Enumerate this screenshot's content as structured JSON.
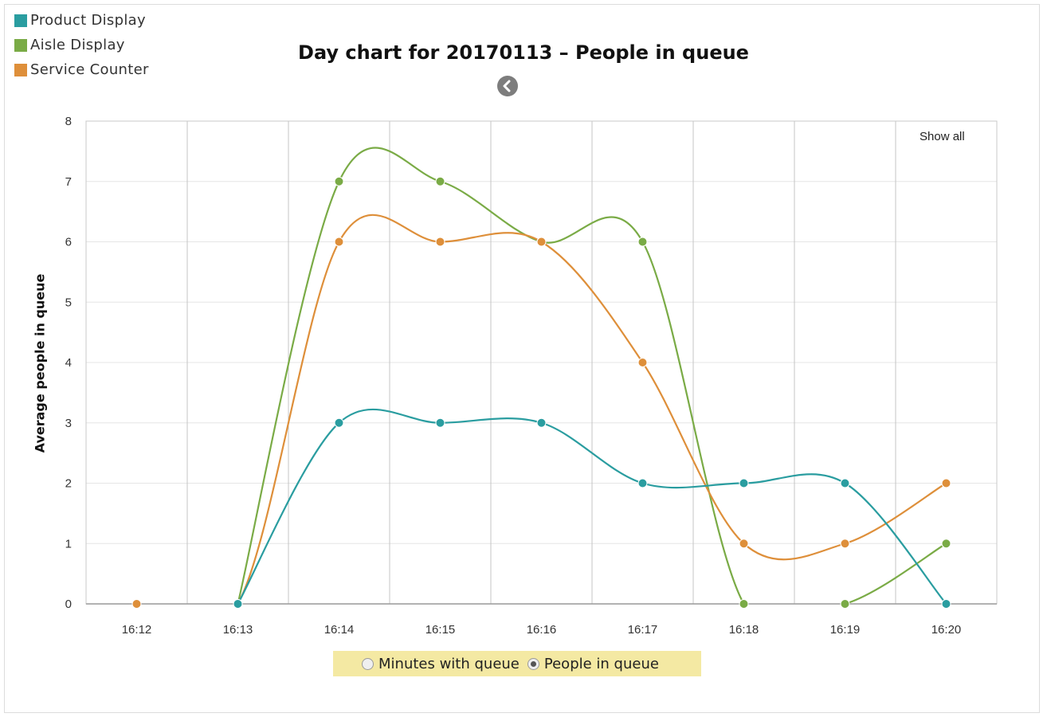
{
  "legend": {
    "items": [
      {
        "label": "Product Display",
        "color": "#2a9da0"
      },
      {
        "label": "Aisle Display",
        "color": "#7aab46"
      },
      {
        "label": "Service Counter",
        "color": "#de8f3a"
      }
    ]
  },
  "show_all_label": "Show all",
  "back_icon": "chevron-left-icon",
  "toggle": {
    "options": [
      {
        "label": "Minutes with queue",
        "checked": false
      },
      {
        "label": "People in queue",
        "checked": true
      }
    ]
  },
  "chart_data": {
    "type": "line",
    "title": "Day chart for 20170113 – People in queue",
    "xlabel": "",
    "ylabel": "Average people in queue",
    "categories": [
      "16:12",
      "16:13",
      "16:14",
      "16:15",
      "16:16",
      "16:17",
      "16:18",
      "16:19",
      "16:20"
    ],
    "ylim": [
      0,
      8
    ],
    "yticks": [
      0,
      1,
      2,
      3,
      4,
      5,
      6,
      7,
      8
    ],
    "grid": true,
    "legend_position": "top-left",
    "series": [
      {
        "name": "Product Display",
        "color": "#2a9da0",
        "values": [
          null,
          0,
          3,
          3,
          3,
          2,
          2,
          2,
          0
        ]
      },
      {
        "name": "Aisle Display",
        "color": "#7aab46",
        "values": [
          null,
          0,
          7,
          7,
          6,
          6,
          0,
          0,
          1
        ]
      },
      {
        "name": "Service Counter",
        "color": "#de8f3a",
        "values": [
          0,
          0,
          6,
          6,
          6,
          4,
          1,
          1,
          2
        ]
      }
    ]
  }
}
